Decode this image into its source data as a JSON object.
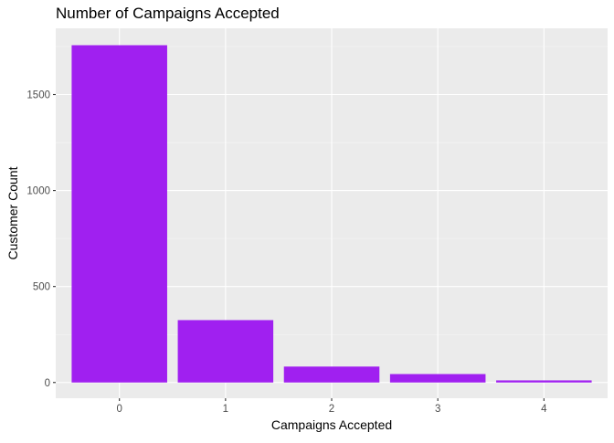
{
  "chart_data": {
    "type": "bar",
    "title": "Number of Campaigns Accepted",
    "xlabel": "Campaigns Accepted",
    "ylabel": "Customer Count",
    "categories": [
      "0",
      "1",
      "2",
      "3",
      "4"
    ],
    "values": [
      1757,
      325,
      83,
      44,
      11
    ],
    "ylim": [
      -82,
      1845
    ],
    "yticks": [
      0,
      500,
      1000,
      1500
    ],
    "grid": true,
    "legend": "none",
    "colors": {
      "bar": "#A020F0",
      "panel_background": "#EBEBEB",
      "grid_major": "#FFFFFF",
      "axis_text": "#4D4D4D",
      "tick": "#333333"
    }
  }
}
